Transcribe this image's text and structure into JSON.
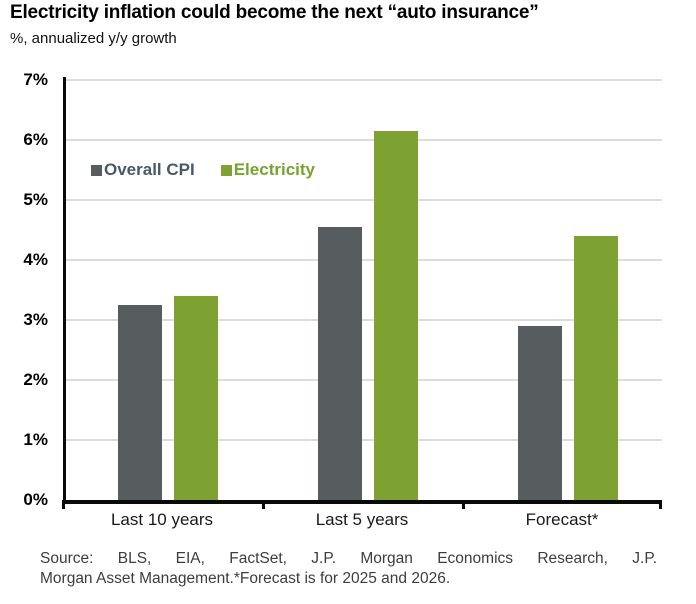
{
  "title": "Electricity inflation could become the next “auto insurance”",
  "subtitle": "%, annualized y/y growth",
  "chart_data": {
    "type": "bar",
    "categories": [
      "Last 10 years",
      "Last 5 years",
      "Forecast*"
    ],
    "series": [
      {
        "name": "Overall CPI",
        "color": "#575c5f",
        "label_color": "#475a6b",
        "values": [
          3.25,
          4.55,
          2.9
        ]
      },
      {
        "name": "Electricity",
        "color": "#7da232",
        "label_color": "#75a32c",
        "values": [
          3.4,
          6.15,
          4.4
        ]
      }
    ],
    "xlabel": "",
    "ylabel": "%, annualized y/y growth",
    "ylim": [
      0,
      7
    ],
    "ytick_step": 1,
    "ytick_labels": [
      "0%",
      "1%",
      "2%",
      "3%",
      "4%",
      "5%",
      "6%",
      "7%"
    ],
    "grid": true,
    "legend_position": "upper-left-inside"
  },
  "colors": {
    "gridline": "#dcdcdc",
    "axis": "#0a0a0a"
  },
  "source": {
    "line1": "Source: BLS, EIA, FactSet, J.P. Morgan Economics Research, J.P.",
    "line2": "Morgan Asset Management.*Forecast is for 2025 and 2026."
  }
}
